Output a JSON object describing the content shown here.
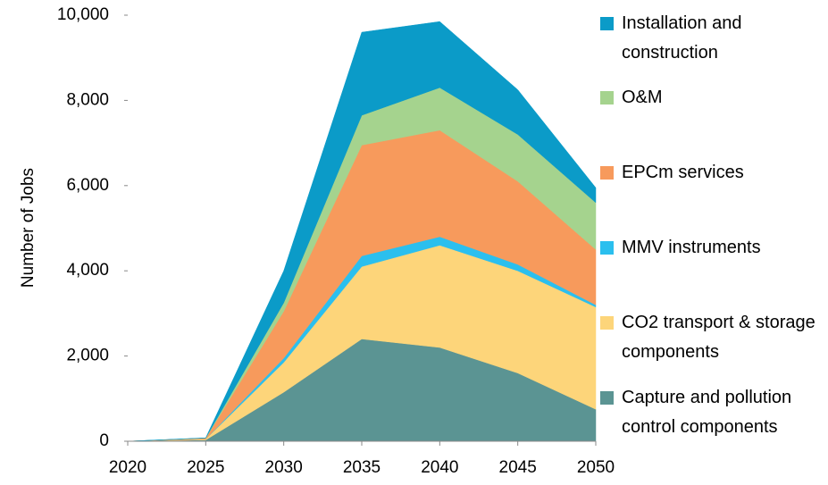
{
  "chart_data": {
    "type": "area",
    "y_label": "Number of Jobs",
    "x": [
      2020,
      2025,
      2030,
      2035,
      2040,
      2045,
      2050
    ],
    "xlim": [
      2020,
      2050
    ],
    "xticks": [
      2020,
      2025,
      2030,
      2035,
      2040,
      2045,
      2050
    ],
    "ylim": [
      0,
      10000
    ],
    "yticks": [
      0,
      {
        "value": 2000,
        "label": "2,000"
      },
      {
        "value": 4000,
        "label": "4,000"
      },
      {
        "value": 6000,
        "label": "6,000"
      },
      {
        "value": 8000,
        "label": "8,000"
      },
      {
        "value": 10000,
        "label": "10,000"
      }
    ],
    "stacked": true,
    "series": [
      {
        "name": "Capture and pollution control components",
        "color": "#5b9493",
        "values": [
          0,
          30,
          1150,
          2400,
          2200,
          1600,
          750
        ]
      },
      {
        "name": "CO2 transport & storage components",
        "color": "#fdd57a",
        "values": [
          0,
          20,
          700,
          1700,
          2400,
          2400,
          2400
        ]
      },
      {
        "name": "MMV instruments",
        "color": "#2bbfee",
        "values": [
          0,
          0,
          100,
          250,
          200,
          150,
          50
        ]
      },
      {
        "name": "EPCm services",
        "color": "#f79a5c",
        "values": [
          0,
          20,
          1100,
          2600,
          2500,
          1950,
          1300
        ]
      },
      {
        "name": "O&M",
        "color": "#a5d38e",
        "values": [
          0,
          5,
          200,
          700,
          1000,
          1100,
          1100
        ]
      },
      {
        "name": "Installation and construction",
        "color": "#0b9bc8",
        "values": [
          0,
          5,
          750,
          1950,
          1550,
          1050,
          350
        ]
      }
    ]
  }
}
